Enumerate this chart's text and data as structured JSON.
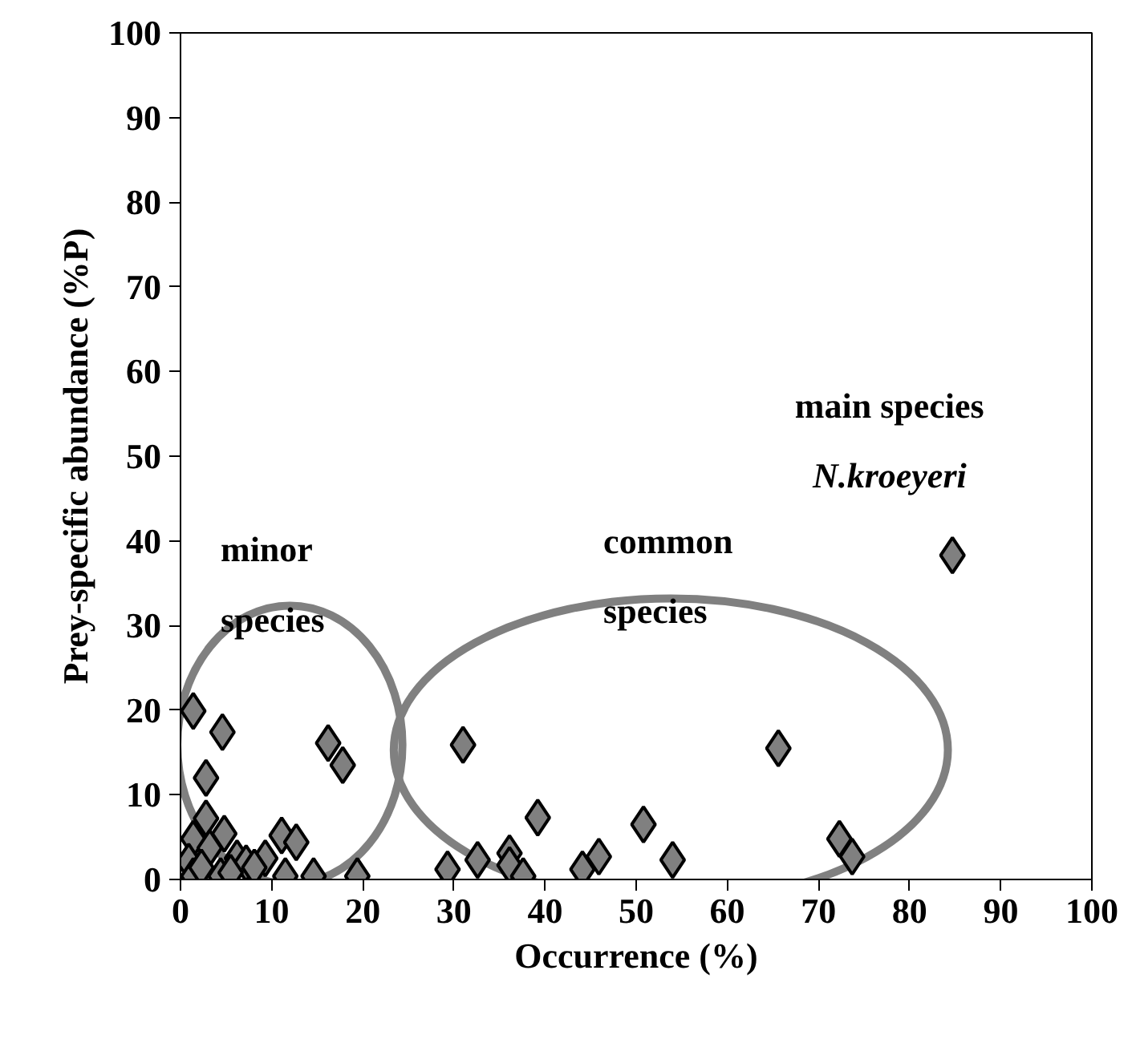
{
  "chart_data": {
    "type": "scatter",
    "xlabel": "Occurrence (%)",
    "ylabel": "Prey-specific abundance (%P)",
    "xlim": [
      0,
      100
    ],
    "ylim": [
      0,
      100
    ],
    "xticks": [
      0,
      10,
      20,
      30,
      40,
      50,
      60,
      70,
      80,
      90,
      100
    ],
    "yticks": [
      0,
      10,
      20,
      30,
      40,
      50,
      60,
      70,
      80,
      90,
      100
    ],
    "grid": false,
    "marker": "diamond",
    "series": [
      {
        "color": "#808080",
        "x": [
          1.4,
          4.6,
          2.8,
          16.2,
          17.8,
          2.8,
          1.4,
          4.8,
          3.2,
          11.1,
          12.7,
          0.9,
          6.2,
          7.2,
          9.3,
          1.4,
          4.4,
          11.5,
          14.6,
          19.4,
          2.3,
          5.5,
          8.1,
          31.0,
          29.3,
          32.6,
          36.1,
          36.1,
          37.6,
          39.2,
          44.1,
          45.9,
          50.8,
          54.0,
          65.6,
          72.3,
          73.7,
          84.7
        ],
        "values": [
          19.9,
          17.4,
          12.0,
          16.1,
          13.5,
          7.2,
          4.8,
          5.4,
          3.7,
          5.2,
          4.4,
          2.1,
          2.5,
          1.9,
          2.5,
          0.4,
          0.4,
          0.4,
          0.4,
          0.4,
          1.4,
          0.8,
          1.4,
          15.9,
          1.2,
          2.3,
          3.1,
          1.7,
          0.4,
          7.3,
          1.2,
          2.7,
          6.5,
          2.3,
          15.5,
          4.8,
          2.7,
          38.3
        ]
      }
    ],
    "annotations": [
      "minor\nspecies",
      "common\nspecies",
      "main species\nN.kroeyeri"
    ]
  }
}
